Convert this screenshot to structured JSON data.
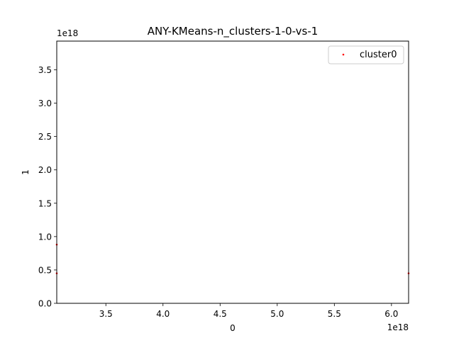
{
  "chart_data": {
    "type": "scatter",
    "title": "ANY-KMeans-n_clusters-1-0-vs-1",
    "xlabel": "0",
    "ylabel": "1",
    "x_offset_text": "1e18",
    "y_offset_text": "1e18",
    "xlim": [
      3.07,
      6.15
    ],
    "ylim": [
      0.0,
      3.93
    ],
    "x_ticks": [
      3.5,
      4.0,
      4.5,
      5.0,
      5.5,
      6.0
    ],
    "x_tick_labels": [
      "3.5",
      "4.0",
      "4.5",
      "5.0",
      "5.5",
      "6.0"
    ],
    "y_ticks": [
      0.0,
      0.5,
      1.0,
      1.5,
      2.0,
      2.5,
      3.0,
      3.5
    ],
    "y_tick_labels": [
      "0.0",
      "0.5",
      "1.0",
      "1.5",
      "2.0",
      "2.5",
      "3.0",
      "3.5"
    ],
    "grid": false,
    "legend": {
      "position": "top-right",
      "entries": [
        "cluster0"
      ]
    },
    "series": [
      {
        "name": "cluster0",
        "color": "#ff0000",
        "points": [
          {
            "x": 3.07,
            "y": 0.88
          },
          {
            "x": 3.07,
            "y": 0.45
          },
          {
            "x": 6.15,
            "y": 0.45
          }
        ]
      }
    ]
  }
}
